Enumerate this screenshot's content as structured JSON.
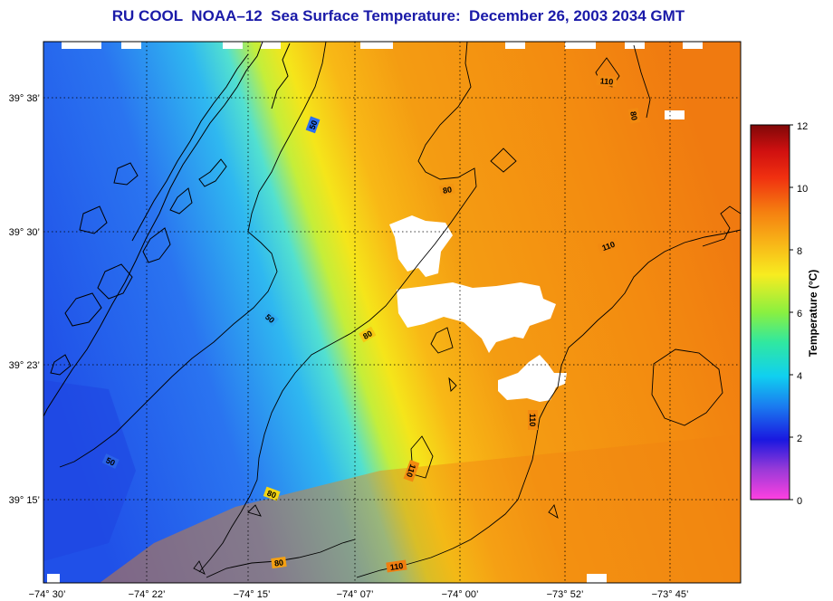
{
  "title": "RU COOL  NOAA–12  Sea Surface Temperature:  December 26, 2003 2034 GMT",
  "map": {
    "lon_labels": [
      "−74° 30’",
      "−74° 22’",
      "−74° 15’",
      "−74° 07’",
      "−74° 00’",
      "−73° 52’",
      "−73° 45’"
    ],
    "lat_labels": [
      "39° 38’",
      "39° 30’",
      "39° 23’",
      "39° 15’"
    ],
    "contour_labels": [
      "50",
      "50",
      "50",
      "80",
      "80",
      "80",
      "80",
      "110",
      "110",
      "110",
      "110",
      "110",
      "80"
    ],
    "colors": {
      "cold": "#1e5ce6",
      "mid": "#f3e21a",
      "warm": "#f28a10",
      "cloud": "#ffffff"
    }
  },
  "colorbar": {
    "label": "Temperature (°C)",
    "ticks": [
      "0",
      "2",
      "4",
      "6",
      "8",
      "10",
      "12"
    ],
    "range": [
      0,
      12
    ]
  }
}
